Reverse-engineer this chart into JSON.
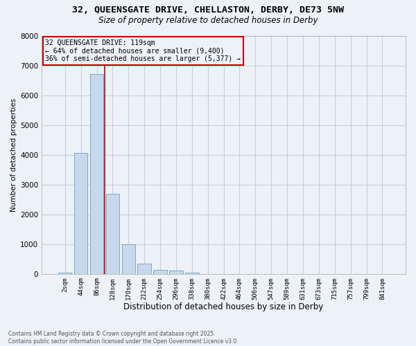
{
  "title_line1": "32, QUEENSGATE DRIVE, CHELLASTON, DERBY, DE73 5NW",
  "title_line2": "Size of property relative to detached houses in Derby",
  "xlabel": "Distribution of detached houses by size in Derby",
  "ylabel": "Number of detached properties",
  "categories": [
    "2sqm",
    "44sqm",
    "86sqm",
    "128sqm",
    "170sqm",
    "212sqm",
    "254sqm",
    "296sqm",
    "338sqm",
    "380sqm",
    "422sqm",
    "464sqm",
    "506sqm",
    "547sqm",
    "589sqm",
    "631sqm",
    "673sqm",
    "715sqm",
    "757sqm",
    "799sqm",
    "841sqm"
  ],
  "values": [
    30,
    4050,
    6700,
    2700,
    1000,
    350,
    130,
    100,
    50,
    0,
    0,
    0,
    0,
    0,
    0,
    0,
    0,
    0,
    0,
    0,
    0
  ],
  "bar_color": "#c8d8ec",
  "bar_edge_color": "#7aaac8",
  "grid_color": "#c8d0dc",
  "bg_color": "#edf1f8",
  "vline_x_idx": 2,
  "vline_color": "#cc0000",
  "annotation_title": "32 QUEENSGATE DRIVE: 119sqm",
  "annotation_line2": "← 64% of detached houses are smaller (9,400)",
  "annotation_line3": "36% of semi-detached houses are larger (5,377) →",
  "annotation_box_color": "#cc0000",
  "footer_line1": "Contains HM Land Registry data © Crown copyright and database right 2025.",
  "footer_line2": "Contains public sector information licensed under the Open Government Licence v3.0.",
  "ylim": [
    0,
    8000
  ],
  "yticks": [
    0,
    1000,
    2000,
    3000,
    4000,
    5000,
    6000,
    7000,
    8000
  ]
}
